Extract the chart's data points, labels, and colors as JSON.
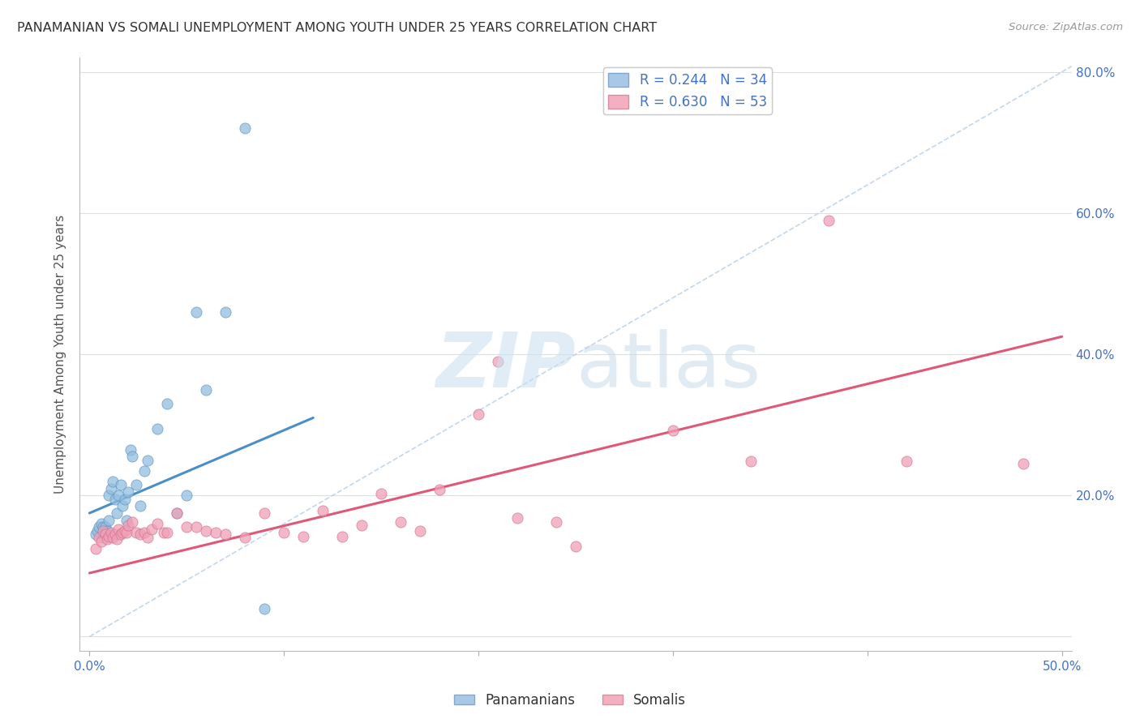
{
  "title": "PANAMANIAN VS SOMALI UNEMPLOYMENT AMONG YOUTH UNDER 25 YEARS CORRELATION CHART",
  "source": "Source: ZipAtlas.com",
  "ylabel_label": "Unemployment Among Youth under 25 years",
  "xlim": [
    -0.005,
    0.505
  ],
  "ylim": [
    -0.02,
    0.82
  ],
  "pan_color": "#90bfe0",
  "som_color": "#f0a0b5",
  "pan_edge": "#6090c0",
  "som_edge": "#d07090",
  "pan_scatter_x": [
    0.003,
    0.004,
    0.005,
    0.006,
    0.007,
    0.008,
    0.009,
    0.01,
    0.01,
    0.011,
    0.012,
    0.013,
    0.014,
    0.015,
    0.016,
    0.017,
    0.018,
    0.019,
    0.02,
    0.021,
    0.022,
    0.024,
    0.026,
    0.028,
    0.03,
    0.035,
    0.04,
    0.045,
    0.05,
    0.055,
    0.06,
    0.07,
    0.08,
    0.09
  ],
  "pan_scatter_y": [
    0.145,
    0.15,
    0.155,
    0.16,
    0.155,
    0.155,
    0.15,
    0.165,
    0.2,
    0.21,
    0.22,
    0.195,
    0.175,
    0.2,
    0.215,
    0.185,
    0.195,
    0.165,
    0.205,
    0.265,
    0.255,
    0.215,
    0.185,
    0.235,
    0.25,
    0.295,
    0.33,
    0.175,
    0.2,
    0.46,
    0.35,
    0.46,
    0.72,
    0.04
  ],
  "som_scatter_x": [
    0.003,
    0.005,
    0.006,
    0.007,
    0.008,
    0.009,
    0.01,
    0.011,
    0.012,
    0.013,
    0.014,
    0.015,
    0.016,
    0.017,
    0.018,
    0.019,
    0.02,
    0.022,
    0.024,
    0.026,
    0.028,
    0.03,
    0.032,
    0.035,
    0.038,
    0.04,
    0.045,
    0.05,
    0.055,
    0.06,
    0.065,
    0.07,
    0.08,
    0.09,
    0.1,
    0.11,
    0.12,
    0.13,
    0.14,
    0.15,
    0.16,
    0.17,
    0.18,
    0.2,
    0.21,
    0.22,
    0.24,
    0.25,
    0.3,
    0.34,
    0.38,
    0.42,
    0.48
  ],
  "som_scatter_y": [
    0.125,
    0.14,
    0.135,
    0.15,
    0.145,
    0.138,
    0.142,
    0.148,
    0.14,
    0.145,
    0.138,
    0.152,
    0.145,
    0.148,
    0.15,
    0.148,
    0.158,
    0.162,
    0.148,
    0.145,
    0.148,
    0.14,
    0.152,
    0.16,
    0.148,
    0.148,
    0.175,
    0.155,
    0.155,
    0.15,
    0.148,
    0.145,
    0.14,
    0.175,
    0.148,
    0.142,
    0.178,
    0.142,
    0.158,
    0.202,
    0.162,
    0.15,
    0.208,
    0.315,
    0.39,
    0.168,
    0.162,
    0.128,
    0.292,
    0.248,
    0.59,
    0.248,
    0.245
  ],
  "pan_line_x": [
    0.0,
    0.115
  ],
  "pan_line_y": [
    0.175,
    0.31
  ],
  "som_line_x": [
    0.0,
    0.5
  ],
  "som_line_y": [
    0.09,
    0.425
  ],
  "dash_line_x": [
    0.0,
    0.505
  ],
  "dash_line_y": [
    0.0,
    0.808
  ],
  "background_color": "#ffffff",
  "grid_color": "#d8e0e8",
  "xticks": [
    0.0,
    0.1,
    0.2,
    0.3,
    0.4,
    0.5
  ],
  "yticks": [
    0.0,
    0.2,
    0.4,
    0.6,
    0.8
  ],
  "xticklabels": [
    "0.0%",
    "",
    "",
    "",
    "",
    "50.0%"
  ],
  "yticklabels_right": [
    "",
    "20.0%",
    "40.0%",
    "60.0%",
    "80.0%"
  ],
  "tick_color": "#4472c4"
}
